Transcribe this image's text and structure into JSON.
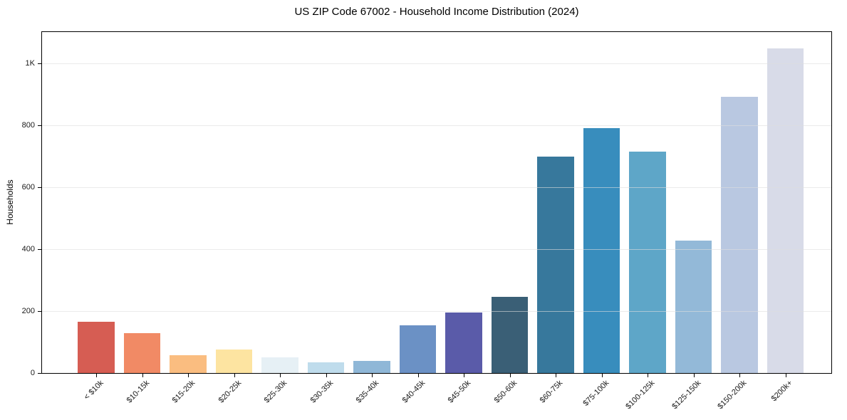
{
  "chart_data": {
    "type": "bar",
    "title": "US ZIP Code 67002 - Household Income Distribution (2024)",
    "xlabel": "",
    "ylabel": "Households",
    "categories": [
      "< $10k",
      "$10-15k",
      "$15-20k",
      "$20-25k",
      "$25-30k",
      "$30-35k",
      "$35-40k",
      "$40-45k",
      "$45-50k",
      "$50-60k",
      "$60-75k",
      "$75-100k",
      "$100-125k",
      "$125-150k",
      "$150-200k",
      "$200k+"
    ],
    "values": [
      165,
      128,
      58,
      75,
      50,
      35,
      38,
      155,
      195,
      245,
      698,
      790,
      715,
      428,
      893,
      1048
    ],
    "bar_colors": [
      "#d65d53",
      "#f18a65",
      "#fabd80",
      "#fde4a1",
      "#e6f0f5",
      "#bfdcec",
      "#8fb7d7",
      "#6b91c5",
      "#5a5ba9",
      "#3a5f76",
      "#37789c",
      "#388dbd",
      "#5ea6c8",
      "#93b9d8",
      "#b9c8e1",
      "#d8dbe8"
    ],
    "ylim": [
      0,
      1106
    ],
    "yticks": [
      {
        "value": 0,
        "label": "0"
      },
      {
        "value": 200,
        "label": "200"
      },
      {
        "value": 400,
        "label": "400"
      },
      {
        "value": 600,
        "label": "600"
      },
      {
        "value": 800,
        "label": "800"
      },
      {
        "value": 1000,
        "label": "1K"
      }
    ],
    "legend": "none",
    "grid": "horizontal",
    "colors": {
      "axis": "#000000",
      "gridline": "#e9e9e9",
      "text": "#1a1a1a",
      "background": "#ffffff"
    }
  }
}
